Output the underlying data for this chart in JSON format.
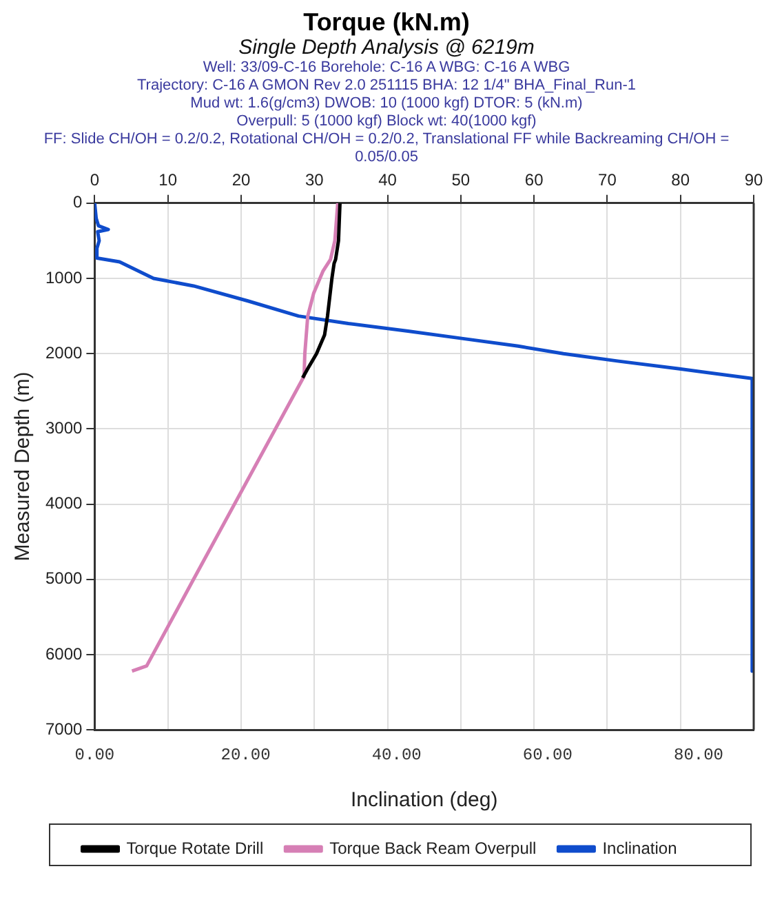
{
  "chart_data": {
    "type": "line",
    "title": "Torque (kN.m)",
    "subtitle": "Single Depth Analysis @ 6219m",
    "annotations": [
      "Well: 33/09-C-16 Borehole: C-16 A WBG: C-16 A WBG",
      "Trajectory: C-16 A GMON Rev 2.0 251115 BHA: 12 1/4\" BHA_Final_Run-1",
      "Mud wt: 1.6(g/cm3) DWOB: 10 (1000 kgf) DTOR: 5 (kN.m)",
      "Overpull: 5 (1000 kgf) Block wt: 40(1000 kgf)",
      "FF: Slide CH/OH = 0.2/0.2, Rotational CH/OH = 0.2/0.2, Translational FF while Backreaming CH/OH = 0.05/0.05"
    ],
    "xlabel": "Inclination (deg)",
    "ylabel": "Measured Depth (m)",
    "series": [
      {
        "name": "Torque Rotate Drill",
        "color": "#000000",
        "axis": "x2",
        "x": [
          33.5,
          33.3,
          32.9,
          32.7,
          32.4,
          31.8,
          31.4,
          30.3,
          29.1,
          28.4
        ],
        "values": [
          0,
          500,
          750,
          800,
          1000,
          1500,
          1750,
          2000,
          2200,
          2320
        ]
      },
      {
        "name": "Torque Back Ream Overpull",
        "color": "#d67fb5",
        "axis": "x2",
        "x": [
          33.2,
          32.8,
          32.2,
          31.2,
          29.9,
          29.1,
          28.7,
          28.6,
          13.5,
          7.1,
          5.1
        ],
        "values": [
          0,
          500,
          750,
          900,
          1200,
          1500,
          2000,
          2300,
          5000,
          6150,
          6219
        ]
      },
      {
        "name": "Inclination",
        "color": "#0f4ccc",
        "x": [
          0,
          0.2,
          0.5,
          1.8,
          0.4,
          0.6,
          0.3,
          0.3,
          3.3,
          7.8,
          13.1,
          20.3,
          27.0,
          33.6,
          41.5,
          48.8,
          56.1,
          62.1,
          69.4,
          77.3,
          87.1,
          87.1
        ],
        "values": [
          0,
          200,
          300,
          350,
          380,
          500,
          600,
          730,
          780,
          1000,
          1100,
          1300,
          1500,
          1600,
          1700,
          1800,
          1900,
          2000,
          2100,
          2200,
          2330,
          6219
        ]
      }
    ],
    "xlim": [
      0,
      87.3
    ],
    "xticks": [
      {
        "value": 0,
        "label": "0.00"
      },
      {
        "value": 20,
        "label": "20.00"
      },
      {
        "value": 40,
        "label": "40.00"
      },
      {
        "value": 60,
        "label": "60.00"
      },
      {
        "value": 80,
        "label": "80.00"
      }
    ],
    "x2lim": [
      0,
      90
    ],
    "x2ticks": [
      0,
      10,
      20,
      30,
      40,
      50,
      60,
      70,
      80,
      90
    ],
    "ylim": [
      7000,
      0
    ],
    "yticks": [
      0,
      1000,
      2000,
      3000,
      4000,
      5000,
      6000,
      7000
    ],
    "grid": true,
    "legend": "bottom",
    "marker": "none",
    "line_style": "solid"
  }
}
